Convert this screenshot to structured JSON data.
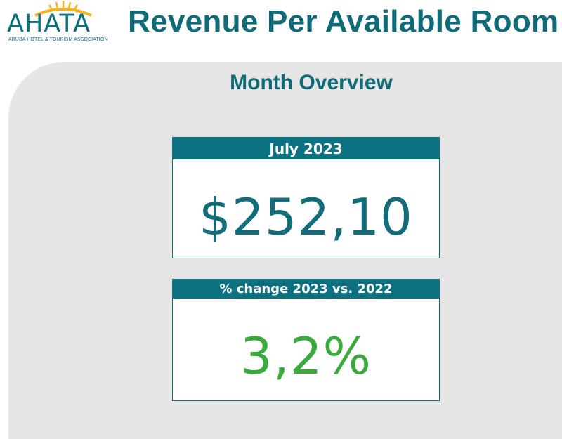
{
  "header": {
    "logo": {
      "wordmark": "AHATA",
      "tagline": "ARUBA HOTEL & TOURISM ASSOCIATION"
    },
    "title": "Revenue Per Available Room"
  },
  "section": {
    "title": "Month Overview"
  },
  "cards": [
    {
      "label": "July 2023",
      "value": "$252,10"
    },
    {
      "label": "% change 2023 vs. 2022",
      "value": "3,2%"
    }
  ],
  "colors": {
    "brand_teal": "#0e6b77",
    "header_bar": "#0c7282",
    "sun_gold": "#f2b51b",
    "positive_green": "#3aaa3c",
    "panel_gray": "#e6e6e6"
  }
}
